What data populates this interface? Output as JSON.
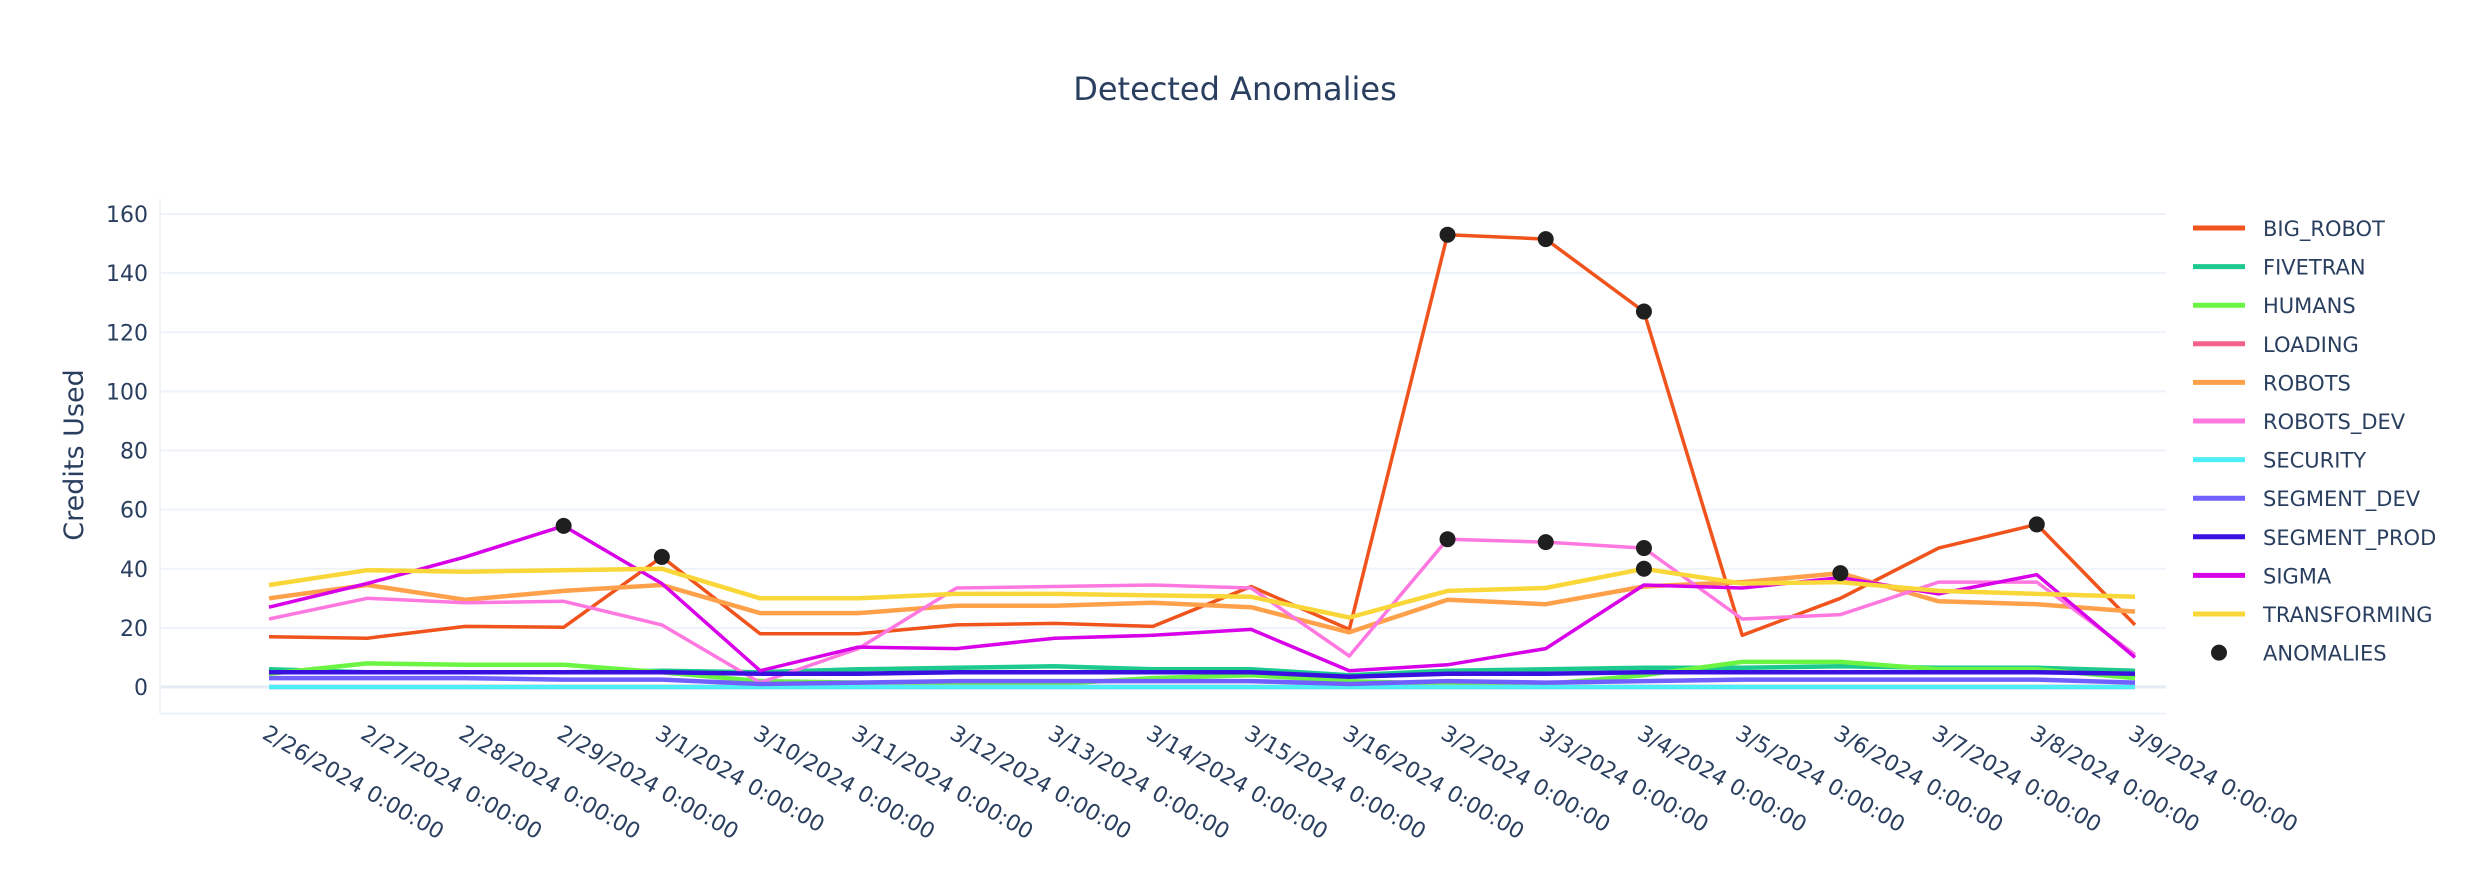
{
  "chart_data": {
    "type": "line",
    "title": "Detected Anomalies",
    "xlabel": "",
    "ylabel": "Credits Used",
    "ylim": [
      -9,
      165
    ],
    "yticks": [
      0,
      20,
      40,
      60,
      80,
      100,
      120,
      140,
      160
    ],
    "grid": true,
    "legend_placement": "right",
    "categories": [
      "2/26/2024 0:00:00",
      "2/27/2024 0:00:00",
      "2/28/2024 0:00:00",
      "2/29/2024 0:00:00",
      "3/1/2024 0:00:00",
      "3/10/2024 0:00:00",
      "3/11/2024 0:00:00",
      "3/12/2024 0:00:00",
      "3/13/2024 0:00:00",
      "3/14/2024 0:00:00",
      "3/15/2024 0:00:00",
      "3/16/2024 0:00:00",
      "3/2/2024 0:00:00",
      "3/3/2024 0:00:00",
      "3/4/2024 0:00:00",
      "3/5/2024 0:00:00",
      "3/6/2024 0:00:00",
      "3/7/2024 0:00:00",
      "3/8/2024 0:00:00",
      "3/9/2024 0:00:00"
    ],
    "series": [
      {
        "name": "BIG_ROBOT",
        "color": "#F0531C",
        "values": [
          17,
          16.5,
          20.5,
          20.2,
          44,
          18,
          18,
          21,
          21.5,
          20.5,
          34,
          19.5,
          153,
          151.5,
          127,
          17.5,
          30,
          47,
          55,
          21
        ]
      },
      {
        "name": "FIVETRAN",
        "color": "#1CC98F",
        "values": [
          6,
          5,
          5,
          5,
          5.5,
          5,
          6,
          6.5,
          7,
          6,
          6,
          4,
          5.5,
          6,
          6.5,
          6.5,
          7,
          6.5,
          6.5,
          5.5
        ]
      },
      {
        "name": "HUMANS",
        "color": "#6BF542",
        "values": [
          4.5,
          8,
          7.5,
          7.5,
          5,
          2,
          1.5,
          1.5,
          1,
          3,
          4,
          2,
          1,
          1,
          4,
          8.5,
          8.5,
          6,
          6,
          3
        ]
      },
      {
        "name": "LOADING",
        "color": "#F6628C",
        "values": [
          0,
          0,
          0,
          0,
          0,
          0,
          0,
          0,
          0,
          0,
          0,
          0,
          0,
          0,
          0,
          0,
          0,
          0,
          0,
          0
        ]
      },
      {
        "name": "ROBOTS",
        "color": "#FFA14A",
        "values": [
          30,
          34.5,
          29.5,
          32.5,
          34.5,
          25,
          25,
          27.5,
          27.5,
          28.5,
          27,
          18.5,
          29.5,
          28,
          34,
          35.5,
          38.5,
          29,
          28,
          25.5
        ]
      },
      {
        "name": "ROBOTS_DEV",
        "color": "#FF78E0",
        "values": [
          23,
          30,
          28.5,
          29,
          21,
          1.5,
          13,
          33.5,
          34,
          34.5,
          33.5,
          10.5,
          50,
          49,
          47,
          23,
          24.5,
          35.5,
          35.5,
          11
        ]
      },
      {
        "name": "SECURITY",
        "color": "#4EEEF8",
        "values": [
          0,
          0,
          0,
          0,
          0,
          0,
          0,
          0,
          0,
          0,
          0,
          0,
          0,
          0,
          0,
          0,
          0,
          0,
          0,
          0
        ]
      },
      {
        "name": "SEGMENT_DEV",
        "color": "#7060FF",
        "values": [
          3,
          3,
          3,
          2.5,
          2.5,
          1,
          1.5,
          2,
          2,
          2,
          2,
          1,
          2,
          1.5,
          2,
          2.5,
          2.5,
          2.5,
          2.5,
          1.5
        ]
      },
      {
        "name": "SEGMENT_PROD",
        "color": "#3A10E0",
        "values": [
          5,
          5,
          5,
          5,
          5,
          4.5,
          4.5,
          5,
          5,
          5,
          5,
          3.5,
          4.5,
          4.5,
          5,
          5,
          5,
          5,
          5,
          4.5
        ]
      },
      {
        "name": "SIGMA",
        "color": "#D800E8",
        "values": [
          27,
          35,
          44,
          54.5,
          35,
          5.5,
          13.5,
          13,
          16.5,
          17.5,
          19.5,
          5.5,
          7.5,
          13,
          34.5,
          33.5,
          37,
          31.5,
          38,
          10
        ]
      },
      {
        "name": "TRANSFORMING",
        "color": "#FAD738",
        "values": [
          34.5,
          39.5,
          39,
          39.5,
          40,
          30,
          30,
          31.5,
          31.5,
          31,
          30.5,
          23.5,
          32.5,
          33.5,
          40,
          35,
          35.5,
          32.5,
          31.5,
          30.5
        ]
      }
    ],
    "anomalies": {
      "name": "ANOMALIES",
      "color": "#1f1f1f",
      "points": [
        {
          "x": "2/29/2024 0:00:00",
          "y": 54.5
        },
        {
          "x": "3/1/2024 0:00:00",
          "y": 44
        },
        {
          "x": "3/2/2024 0:00:00",
          "y": 153
        },
        {
          "x": "3/3/2024 0:00:00",
          "y": 151.5
        },
        {
          "x": "3/4/2024 0:00:00",
          "y": 127
        },
        {
          "x": "3/2/2024 0:00:00",
          "y": 50
        },
        {
          "x": "3/3/2024 0:00:00",
          "y": 49
        },
        {
          "x": "3/4/2024 0:00:00",
          "y": 47
        },
        {
          "x": "3/4/2024 0:00:00",
          "y": 40
        },
        {
          "x": "3/6/2024 0:00:00",
          "y": 38.5
        },
        {
          "x": "3/8/2024 0:00:00",
          "y": 55
        }
      ]
    }
  }
}
